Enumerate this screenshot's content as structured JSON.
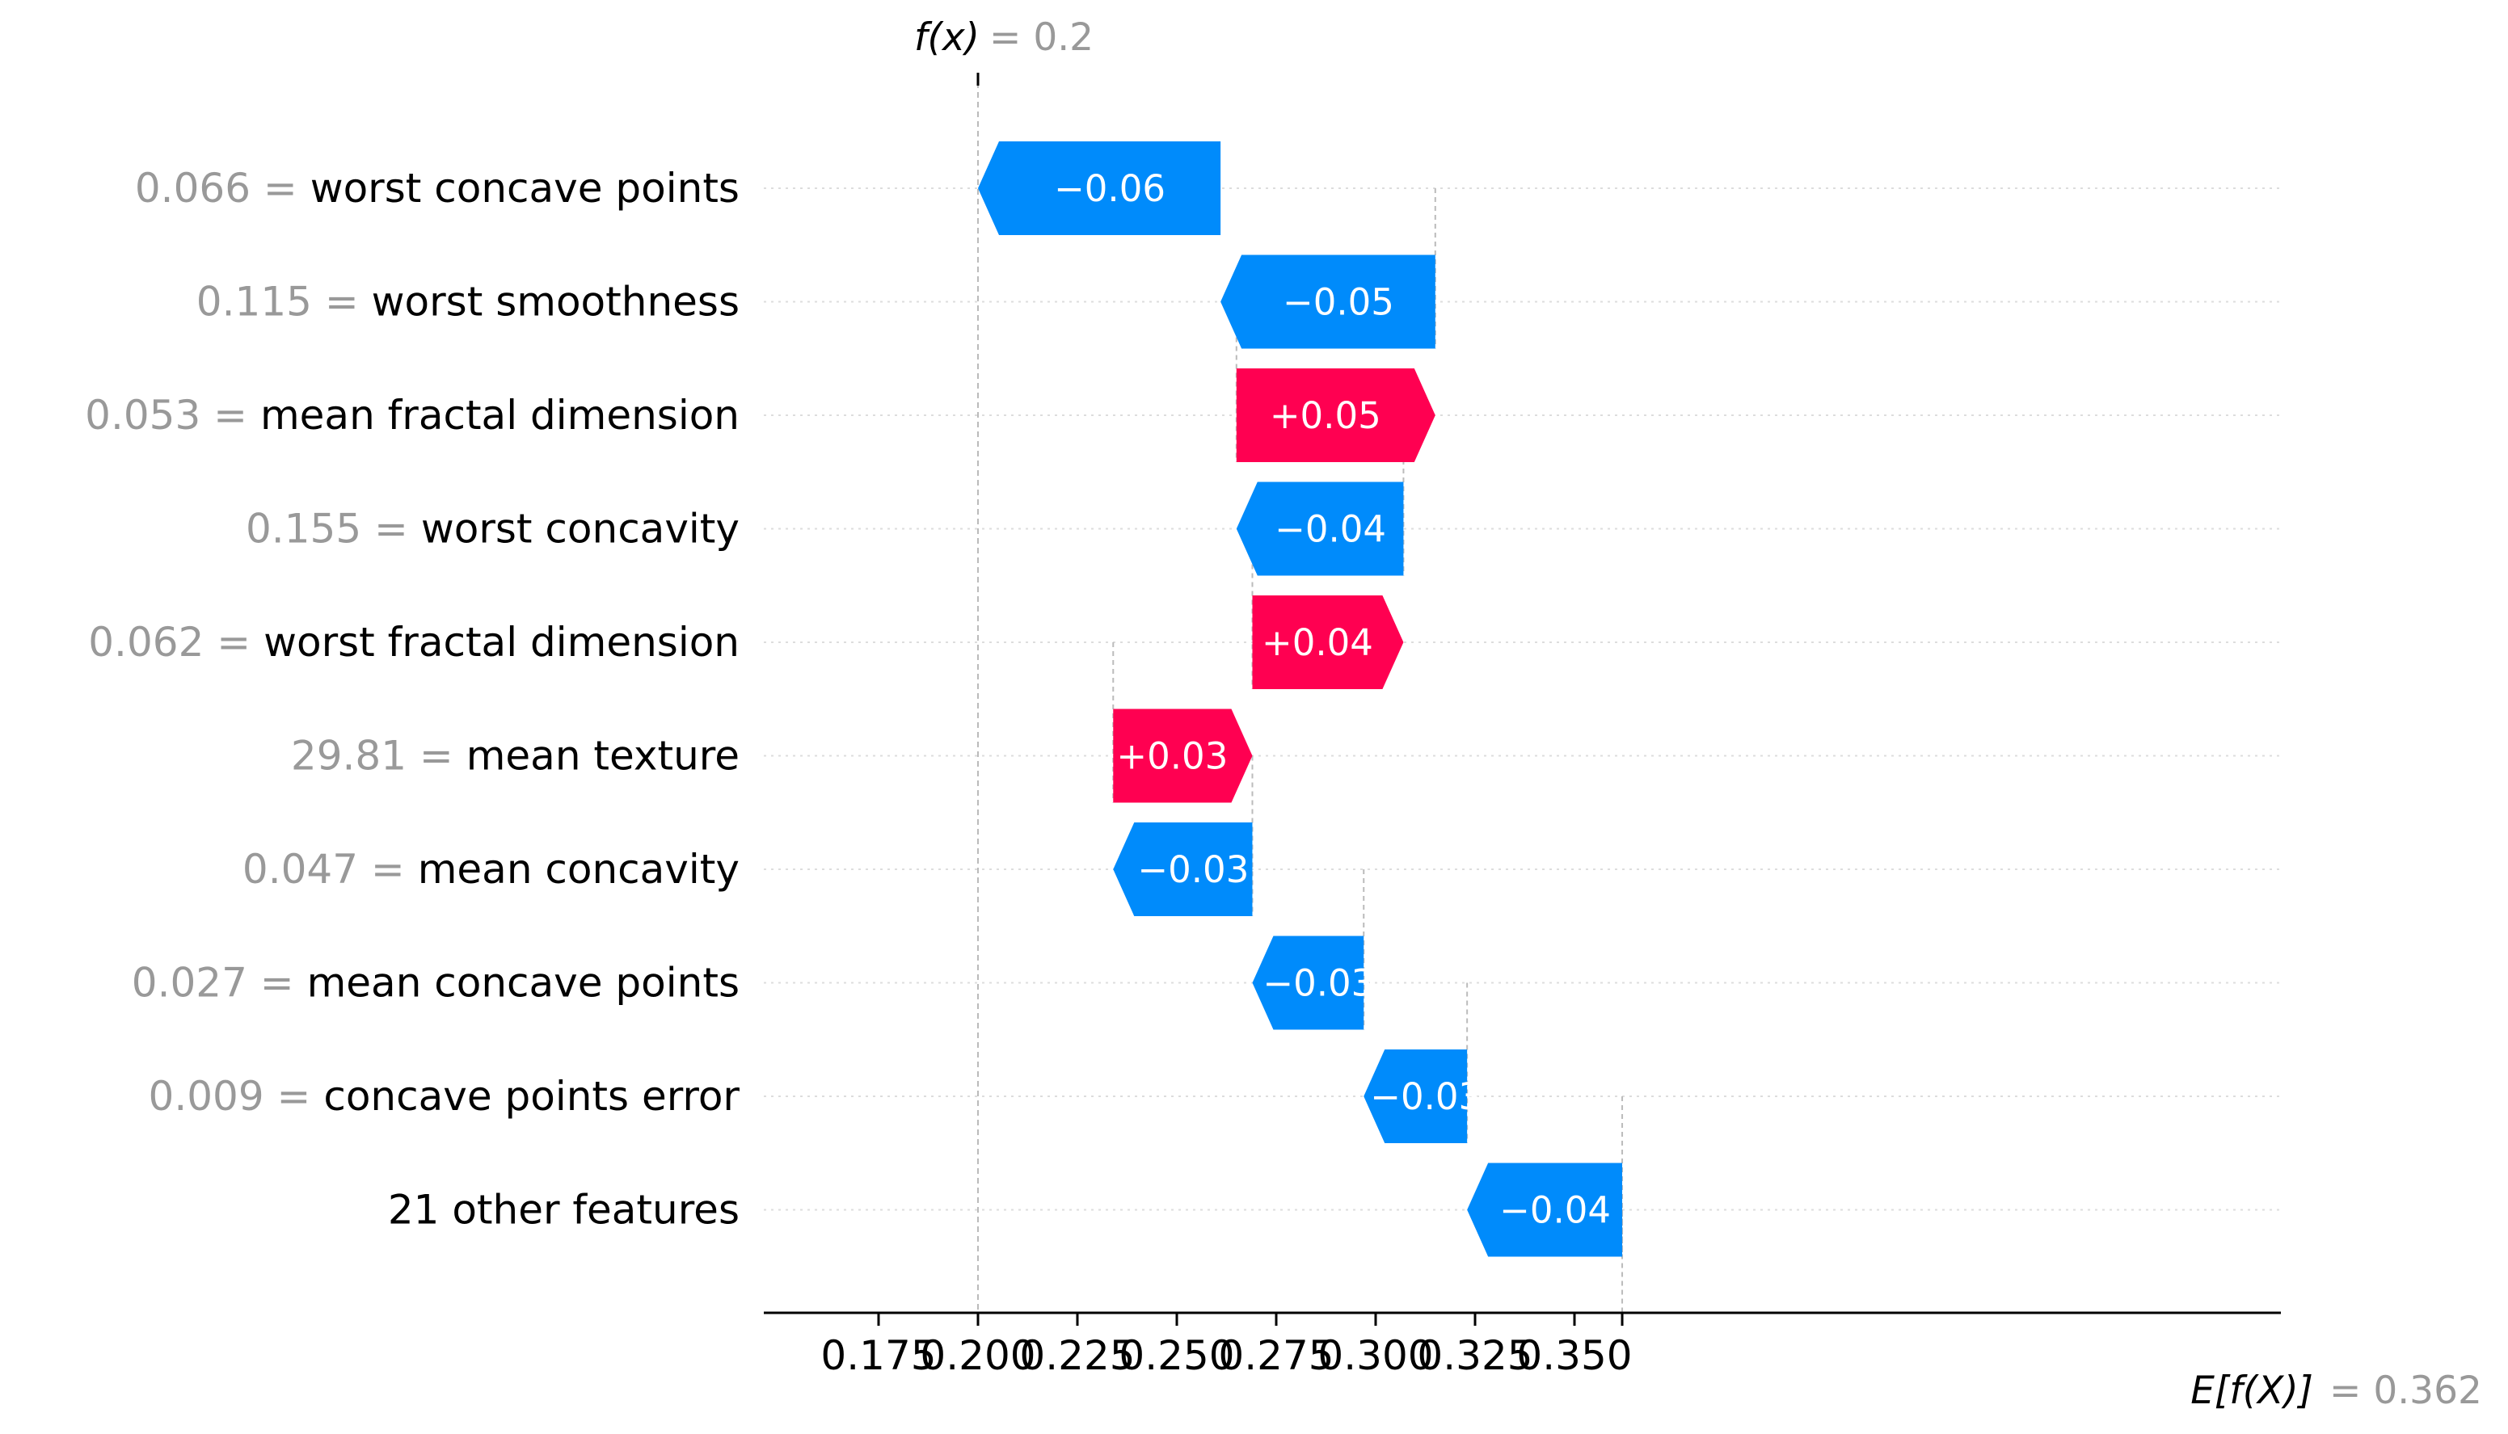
{
  "chart_data": {
    "type": "waterfall",
    "fx_label": "f(x)",
    "fx_value": "= 0.2",
    "ex_label": "E[f(X)]",
    "ex_value": "= 0.362",
    "base_value": 0.362,
    "final_value": 0.2,
    "xlim": [
      0.175,
      0.36
    ],
    "xticks": [
      "0.175",
      "0.200",
      "0.225",
      "0.250",
      "0.275",
      "0.300",
      "0.325",
      "0.350"
    ],
    "colors": {
      "positive": "#ff0051",
      "negative": "#008bfb",
      "value_text": "#999999",
      "label_text": "#000000"
    },
    "rows": [
      {
        "value": "0.066",
        "feature": "worst concave points",
        "start": 0.261,
        "end": 0.2,
        "label": "−0.06"
      },
      {
        "value": "0.115",
        "feature": "worst smoothness",
        "start": 0.315,
        "end": 0.261,
        "label": "−0.05"
      },
      {
        "value": "0.053",
        "feature": "mean fractal dimension",
        "start": 0.265,
        "end": 0.315,
        "label": "+0.05"
      },
      {
        "value": "0.155",
        "feature": "worst concavity",
        "start": 0.307,
        "end": 0.265,
        "label": "−0.04"
      },
      {
        "value": "0.062",
        "feature": "worst fractal dimension",
        "start": 0.269,
        "end": 0.307,
        "label": "+0.04"
      },
      {
        "value": "29.81",
        "feature": "mean texture",
        "start": 0.234,
        "end": 0.269,
        "label": "+0.03"
      },
      {
        "value": "0.047",
        "feature": "mean concavity",
        "start": 0.269,
        "end": 0.234,
        "label": "−0.03"
      },
      {
        "value": "0.027",
        "feature": "mean concave points",
        "start": 0.297,
        "end": 0.269,
        "label": "−0.03"
      },
      {
        "value": "0.009",
        "feature": "concave points error",
        "start": 0.323,
        "end": 0.297,
        "label": "−0.03"
      },
      {
        "value": "",
        "feature": "21 other features",
        "start": 0.362,
        "end": 0.323,
        "label": "−0.04"
      }
    ]
  }
}
